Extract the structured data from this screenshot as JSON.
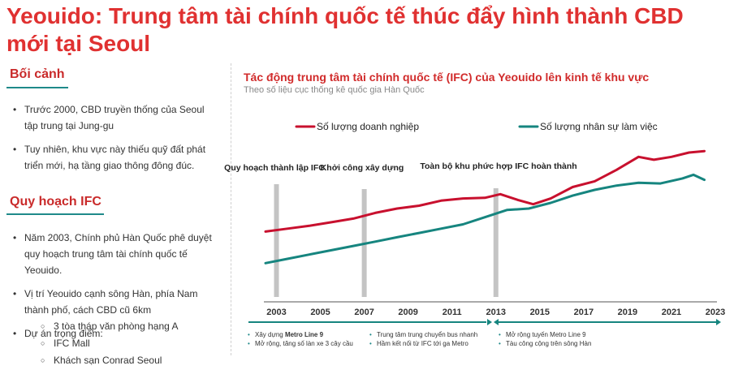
{
  "title": "Yeouido: Trung tâm tài chính quốc tế thúc đẩy hình thành CBD mới tại Seoul",
  "context": {
    "heading": "Bối cảnh",
    "bullets": [
      "Trước 2000, CBD truyền thống của Seoul tập trung tại Jung-gu",
      "Tuy nhiên, khu vực này thiếu quỹ đất phát triển mới, hạ tầng giao thông đông đúc."
    ]
  },
  "plan": {
    "heading": "Quy hoạch IFC",
    "bullets": [
      "Năm 2003, Chính phủ Hàn Quốc phê duyệt quy hoạch trung tâm tài chính quốc tế Yeouido.",
      "Vị trí Yeouido cạnh sông Hàn, phía Nam thành phố, cách CBD cũ 6km",
      "Dự án trọng điểm:"
    ],
    "projects": [
      "3 tòa tháp văn phòng hạng A",
      "IFC Mall",
      "Khách sạn Conrad Seoul"
    ]
  },
  "phases": [
    {
      "items": [
        "Xây dựng **Metro Line 9**",
        "Mở rộng, tăng số làn xe 3 cây cầu"
      ]
    },
    {
      "items": [
        "Trung tâm trung chuyển bus nhanh",
        "Hầm kết nối từ IFC tới ga Metro"
      ]
    },
    {
      "items": [
        "Mở rộng tuyến Metro Line 9",
        "Tàu công cộng trên sông Hàn"
      ]
    }
  ],
  "colors": {
    "red": "#c8102e",
    "teal": "#16857f",
    "title": "#e03131"
  },
  "chart_data": {
    "type": "line",
    "title": "Tác động trung tâm tài chính quốc tế (IFC) của Yeouido lên kinh tế khu vực",
    "subtitle": "Theo số liệu cục thống kê quốc gia Hàn Quốc",
    "xlim": [
      2002.5,
      2023
    ],
    "x_ticks": [
      "2003",
      "2005",
      "2007",
      "2009",
      "2011",
      "2013",
      "2015",
      "2017",
      "2019",
      "2021",
      "2023"
    ],
    "grid": false,
    "legend_position": "top",
    "ylim": [
      0,
      100
    ],
    "series": [
      {
        "name": "Số lượng doanh nghiệp",
        "color": "#c8102e",
        "points": [
          [
            2002.5,
            32
          ],
          [
            2003.5,
            34
          ],
          [
            2004.5,
            36
          ],
          [
            2005.5,
            38.5
          ],
          [
            2006.5,
            41
          ],
          [
            2007.5,
            45
          ],
          [
            2008.5,
            48
          ],
          [
            2009.5,
            50
          ],
          [
            2010.5,
            53.5
          ],
          [
            2011.5,
            55
          ],
          [
            2012.5,
            55.5
          ],
          [
            2013.2,
            58
          ],
          [
            2014,
            54
          ],
          [
            2014.7,
            51
          ],
          [
            2015.5,
            55
          ],
          [
            2016.5,
            63
          ],
          [
            2017.5,
            67
          ],
          [
            2018.5,
            75
          ],
          [
            2019.5,
            84
          ],
          [
            2020.2,
            82
          ],
          [
            2021,
            84
          ],
          [
            2021.8,
            87
          ],
          [
            2022.5,
            88
          ]
        ]
      },
      {
        "name": "Số lượng nhân sự làm việc",
        "color": "#16857f",
        "points": [
          [
            2002.5,
            10
          ],
          [
            2003.5,
            13
          ],
          [
            2004.5,
            16
          ],
          [
            2005.5,
            19
          ],
          [
            2006.5,
            22
          ],
          [
            2007.5,
            25
          ],
          [
            2008.5,
            28
          ],
          [
            2009.5,
            31
          ],
          [
            2010.5,
            34
          ],
          [
            2011.5,
            37
          ],
          [
            2012.5,
            42
          ],
          [
            2013.5,
            47
          ],
          [
            2014.5,
            48
          ],
          [
            2015.5,
            52
          ],
          [
            2016.5,
            57
          ],
          [
            2017.5,
            61
          ],
          [
            2018.5,
            64
          ],
          [
            2019.5,
            66
          ],
          [
            2020.5,
            65.5
          ],
          [
            2021.5,
            69
          ],
          [
            2022,
            71.5
          ],
          [
            2022.5,
            68
          ]
        ]
      }
    ],
    "annotations": [
      {
        "x": 2003,
        "label": "Quy hoạch thành lập IFC"
      },
      {
        "x": 2007,
        "label": "Khởi công xây dựng"
      },
      {
        "x": 2013,
        "label": "Toàn bộ khu phức hợp IFC hoàn thành"
      }
    ]
  }
}
